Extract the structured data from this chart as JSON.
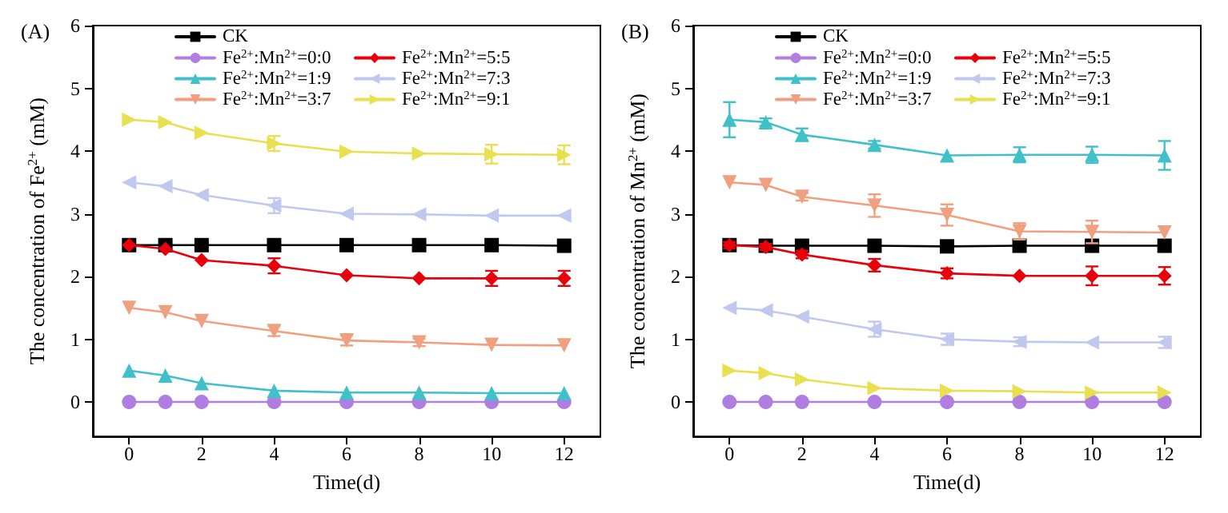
{
  "chart_data": [
    {
      "type": "line",
      "title": "(A)",
      "xlabel": "Time(d)",
      "ylabel": "The concentration of Fe$^{2+}$ (mM)",
      "x": [
        0,
        1,
        2,
        4,
        6,
        8,
        10,
        12
      ],
      "xlim": [
        -1,
        13
      ],
      "xticks": [
        0,
        2,
        4,
        6,
        8,
        10,
        12
      ],
      "ylim": [
        -0.55,
        6
      ],
      "yticks": [
        0,
        1,
        2,
        3,
        4,
        5,
        6
      ],
      "grid": false,
      "legend": "top",
      "line_style": "solid",
      "series": [
        {
          "name": "CK",
          "color": "#000000",
          "marker": "square",
          "values": [
            2.5,
            2.5,
            2.5,
            2.5,
            2.5,
            2.5,
            2.5,
            2.49
          ]
        },
        {
          "name": "Fe$^{2+}$:Mn$^{2+}$=0:0",
          "color": "#b07ee0",
          "marker": "circle",
          "values": [
            0,
            0,
            0,
            0,
            0,
            0,
            0,
            0
          ]
        },
        {
          "name": "Fe$^{2+}$:Mn$^{2+}$=1:9",
          "color": "#40c0c8",
          "marker": "triangle",
          "values": [
            0.5,
            0.42,
            0.3,
            0.18,
            0.15,
            0.15,
            0.14,
            0.14
          ]
        },
        {
          "name": "Fe$^{2+}$:Mn$^{2+}$=3:7",
          "color": "#f0a080",
          "marker": "triangle-down",
          "values": [
            1.5,
            1.43,
            1.29,
            1.13,
            0.98,
            0.95,
            0.91,
            0.9
          ],
          "errors": [
            null,
            null,
            null,
            0.08,
            0.08,
            0.06,
            null,
            null
          ]
        },
        {
          "name": "Fe$^{2+}$:Mn$^{2+}$=5:5",
          "color": "#e8000b",
          "marker": "diamond",
          "values": [
            2.5,
            2.44,
            2.26,
            2.17,
            2.02,
            1.97,
            1.97,
            1.97
          ],
          "errors": [
            null,
            null,
            null,
            0.12,
            null,
            null,
            0.12,
            0.12
          ]
        },
        {
          "name": "Fe$^{2+}$:Mn$^{2+}$=7:3",
          "color": "#c0c8f0",
          "marker": "triangle-left",
          "values": [
            3.5,
            3.44,
            3.3,
            3.13,
            3.0,
            2.99,
            2.97,
            2.97
          ],
          "errors": [
            null,
            null,
            null,
            0.12,
            null,
            null,
            null,
            null
          ]
        },
        {
          "name": "Fe$^{2+}$:Mn$^{2+}$=9:1",
          "color": "#e8e050",
          "marker": "triangle-right",
          "values": [
            4.5,
            4.46,
            4.29,
            4.12,
            3.99,
            3.96,
            3.95,
            3.94
          ],
          "errors": [
            null,
            null,
            null,
            0.12,
            null,
            null,
            0.15,
            0.15
          ]
        }
      ]
    },
    {
      "type": "line",
      "title": "(B)",
      "xlabel": "Time(d)",
      "ylabel": "The concentration of Mn$^{2+}$ (mM)",
      "x": [
        0,
        1,
        2,
        4,
        6,
        8,
        10,
        12
      ],
      "xlim": [
        -1,
        13
      ],
      "xticks": [
        0,
        2,
        4,
        6,
        8,
        10,
        12
      ],
      "ylim": [
        -0.55,
        6
      ],
      "yticks": [
        0,
        1,
        2,
        3,
        4,
        5,
        6
      ],
      "grid": false,
      "legend": "top",
      "line_style": "solid",
      "series": [
        {
          "name": "CK",
          "color": "#000000",
          "marker": "square",
          "values": [
            2.5,
            2.49,
            2.49,
            2.49,
            2.48,
            2.49,
            2.49,
            2.49
          ]
        },
        {
          "name": "Fe$^{2+}$:Mn$^{2+}$=0:0",
          "color": "#b07ee0",
          "marker": "circle",
          "values": [
            0,
            0,
            0,
            0,
            0,
            0,
            0,
            0
          ]
        },
        {
          "name": "Fe$^{2+}$:Mn$^{2+}$=1:9",
          "color": "#40c0c8",
          "marker": "triangle",
          "values": [
            4.5,
            4.46,
            4.26,
            4.1,
            3.93,
            3.94,
            3.94,
            3.93
          ],
          "errors": [
            0.28,
            0.06,
            0.1,
            0.06,
            null,
            0.12,
            0.13,
            0.23
          ]
        },
        {
          "name": "Fe$^{2+}$:Mn$^{2+}$=3:7",
          "color": "#f0a080",
          "marker": "triangle-down",
          "values": [
            3.5,
            3.46,
            3.27,
            3.13,
            2.98,
            2.72,
            2.71,
            2.7
          ],
          "errors": [
            null,
            null,
            0.06,
            0.18,
            0.17,
            0.13,
            0.18,
            null
          ]
        },
        {
          "name": "Fe$^{2+}$:Mn$^{2+}$=5:5",
          "color": "#e8000b",
          "marker": "diamond",
          "values": [
            2.5,
            2.47,
            2.35,
            2.18,
            2.05,
            2.01,
            2.01,
            2.01
          ],
          "errors": [
            0.05,
            0.05,
            0.06,
            0.1,
            0.08,
            null,
            0.15,
            0.14
          ]
        },
        {
          "name": "Fe$^{2+}$:Mn$^{2+}$=7:3",
          "color": "#c0c8f0",
          "marker": "triangle-left",
          "values": [
            1.5,
            1.46,
            1.36,
            1.16,
            1.0,
            0.96,
            0.95,
            0.95
          ],
          "errors": [
            null,
            null,
            null,
            0.12,
            0.09,
            0.07,
            null,
            0.09
          ]
        },
        {
          "name": "Fe$^{2+}$:Mn$^{2+}$=9:1",
          "color": "#e8e050",
          "marker": "triangle-right",
          "values": [
            0.5,
            0.46,
            0.36,
            0.22,
            0.18,
            0.17,
            0.15,
            0.15
          ]
        }
      ]
    }
  ]
}
